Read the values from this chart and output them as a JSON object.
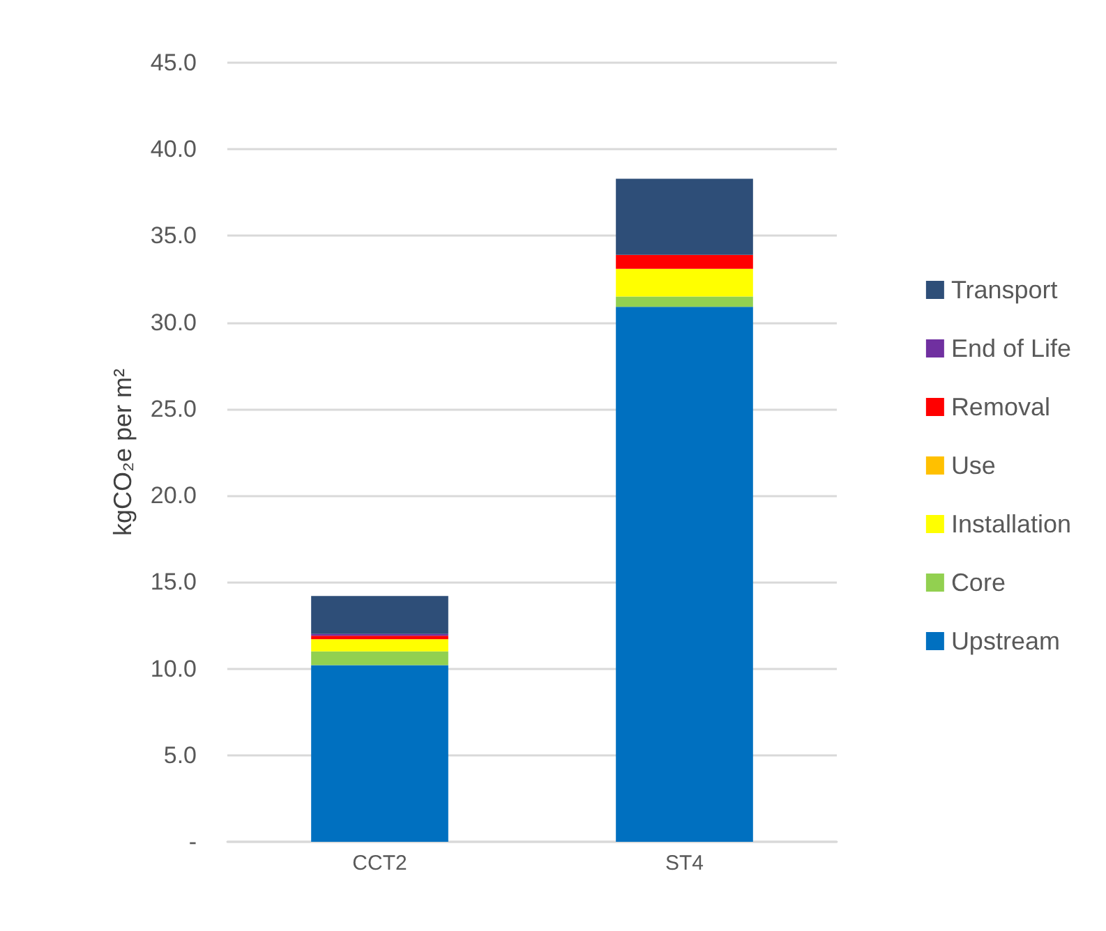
{
  "chart_data": {
    "type": "bar",
    "stacked": true,
    "ylabel": "kgCO₂e per m²",
    "categories": [
      "CCT2",
      "ST4"
    ],
    "series": [
      {
        "name": "Upstream",
        "color": "#0070c0",
        "values": [
          10.2,
          30.9
        ]
      },
      {
        "name": "Core",
        "color": "#92d050",
        "values": [
          0.8,
          0.6
        ]
      },
      {
        "name": "Installation",
        "color": "#ffff00",
        "values": [
          0.7,
          1.6
        ]
      },
      {
        "name": "Use",
        "color": "#ffc000",
        "values": [
          0,
          0
        ]
      },
      {
        "name": "Removal",
        "color": "#ff0000",
        "values": [
          0.2,
          0.8
        ]
      },
      {
        "name": "End of Life",
        "color": "#7030a0",
        "values": [
          0.1,
          0
        ]
      },
      {
        "name": "Transport",
        "color": "#2e4e78",
        "values": [
          2.2,
          4.4
        ]
      }
    ],
    "ylim": [
      0,
      45
    ],
    "yticks": [
      {
        "value": 0,
        "label": "-"
      },
      {
        "value": 5,
        "label": "5.0"
      },
      {
        "value": 10,
        "label": "10.0"
      },
      {
        "value": 15,
        "label": "15.0"
      },
      {
        "value": 20,
        "label": "20.0"
      },
      {
        "value": 25,
        "label": "25.0"
      },
      {
        "value": 30,
        "label": "30.0"
      },
      {
        "value": 35,
        "label": "35.0"
      },
      {
        "value": 40,
        "label": "40.0"
      },
      {
        "value": 45,
        "label": "45.0"
      }
    ],
    "grid": "y",
    "legend": "right"
  }
}
